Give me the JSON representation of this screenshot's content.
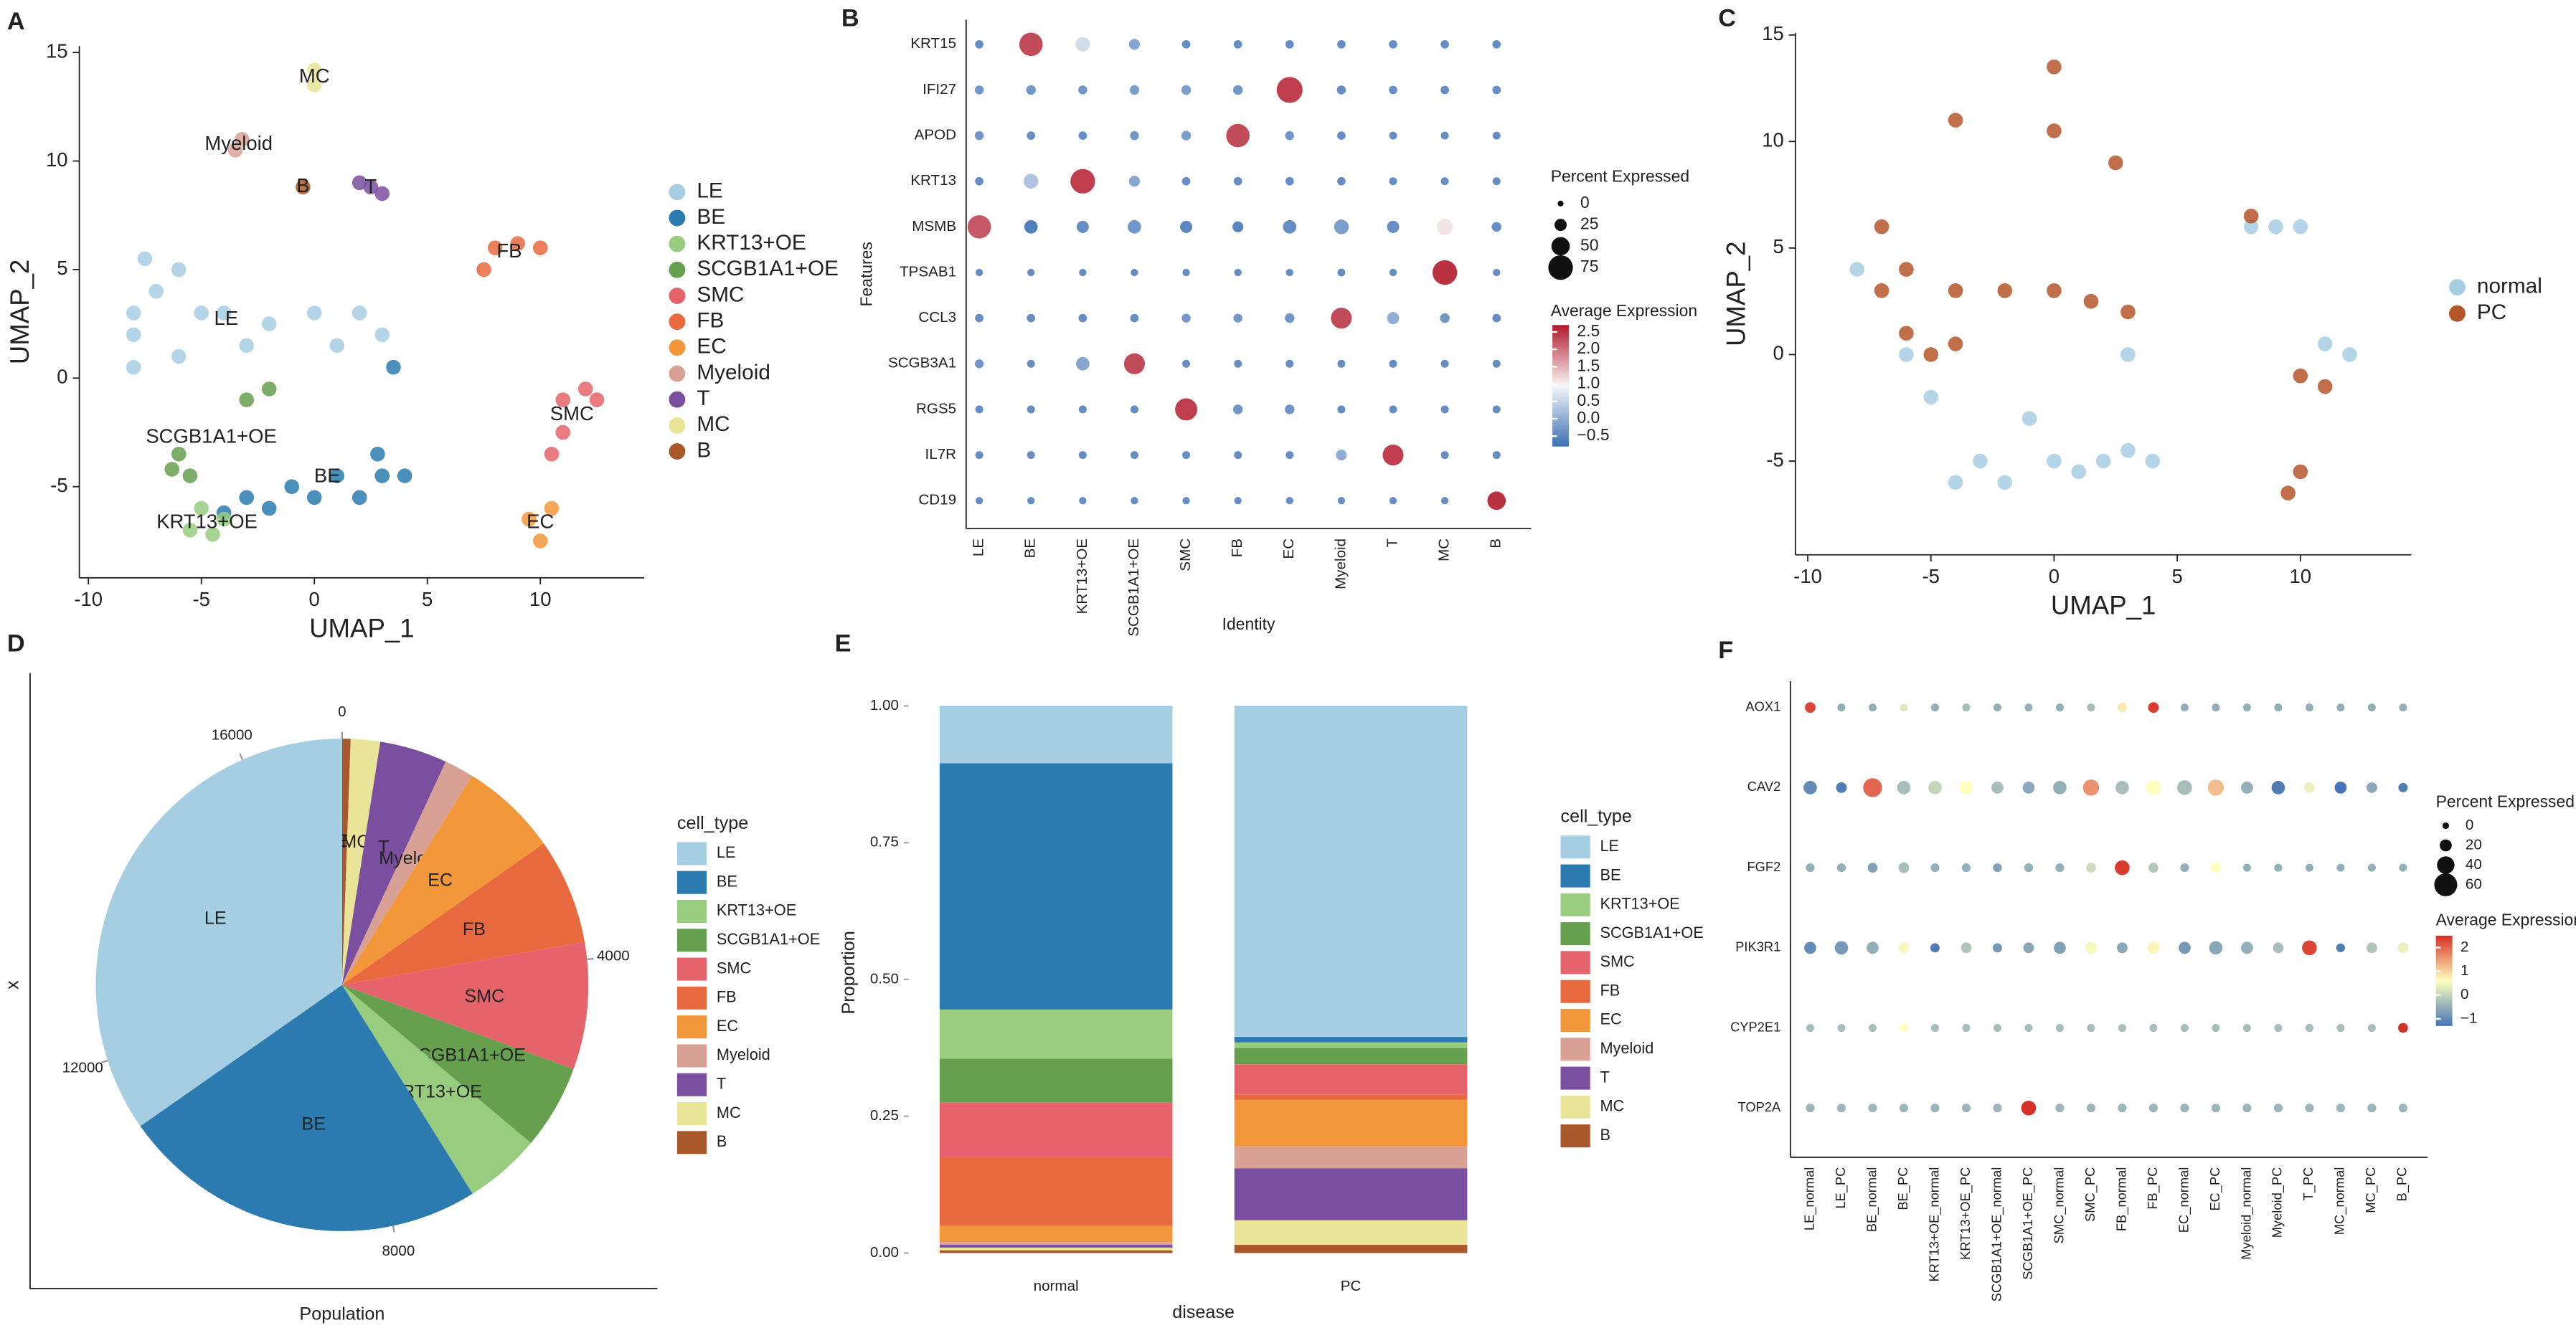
{
  "chart_data": [
    {
      "type": "scatter",
      "panel": "A",
      "xlabel": "UMAP_1",
      "ylabel": "UMAP_2",
      "point_labels": true,
      "xlim": [
        -10.4,
        14.6
      ],
      "ylim": [
        -9.2,
        15.3
      ],
      "xticks": [
        -10,
        -5,
        0,
        5,
        10
      ],
      "yticks": [
        -5,
        0,
        5,
        10,
        15
      ],
      "series": [
        {
          "name": "LE",
          "color": "#a6cee3",
          "x": [
            -7,
            -8,
            -6,
            -5,
            -4,
            -2,
            0,
            2,
            3,
            -6,
            -8,
            -3,
            -8,
            -7.5,
            1
          ],
          "y": [
            4,
            2,
            1,
            3,
            3,
            2.5,
            3,
            3,
            2,
            5,
            0.5,
            1.5,
            3,
            5.5,
            1.5
          ]
        },
        {
          "name": "BE",
          "color": "#2b7bb0",
          "x": [
            -3,
            -1,
            1,
            3,
            4,
            0,
            -2,
            2,
            3.5,
            -4,
            2.8
          ],
          "y": [
            -5.5,
            -5,
            -4.5,
            -4.5,
            -4.5,
            -5.5,
            -6,
            -5.5,
            0.5,
            -6.2,
            -3.5
          ]
        },
        {
          "name": "KRT13+OE",
          "color": "#98cd7f",
          "x": [
            -5,
            -4,
            -5.5,
            -4.5
          ],
          "y": [
            -6,
            -6.5,
            -7,
            -7.2
          ]
        },
        {
          "name": "SCGB1A1+OE",
          "color": "#66a04f",
          "x": [
            -6,
            -5.5,
            -6.3,
            -3,
            -2
          ],
          "y": [
            -3.5,
            -4.5,
            -4.2,
            -1,
            -0.5
          ]
        },
        {
          "name": "SMC",
          "color": "#e5636a",
          "x": [
            11,
            12,
            11,
            10.5,
            12.5
          ],
          "y": [
            -1,
            -0.5,
            -2.5,
            -3.5,
            -1
          ]
        },
        {
          "name": "FB",
          "color": "#e9693f",
          "x": [
            8,
            9,
            10,
            7.5
          ],
          "y": [
            6,
            6.2,
            6,
            5
          ]
        },
        {
          "name": "EC",
          "color": "#f3983a",
          "x": [
            9.5,
            10,
            10.5
          ],
          "y": [
            -6.5,
            -7.5,
            -6
          ]
        },
        {
          "name": "Myeloid",
          "color": "#d9a196",
          "x": [
            -3.5,
            -3.2
          ],
          "y": [
            10.5,
            11
          ]
        },
        {
          "name": "T",
          "color": "#7b4fa0",
          "x": [
            2,
            2.5,
            3
          ],
          "y": [
            9,
            8.8,
            8.5
          ]
        },
        {
          "name": "MC",
          "color": "#e9e498",
          "x": [
            0,
            0
          ],
          "y": [
            13.5,
            14.2
          ]
        },
        {
          "name": "B",
          "color": "#a9582b",
          "x": [
            -0.5
          ],
          "y": [
            8.8
          ]
        }
      ]
    },
    {
      "type": "dotplot",
      "panel": "B",
      "xlabel": "Identity",
      "ylabel": "Features",
      "features": [
        "KRT15",
        "IFI27",
        "APOD",
        "KRT13",
        "MSMB",
        "TPSAB1",
        "CCL3",
        "SCGB3A1",
        "RGS5",
        "IL7R",
        "CD19"
      ],
      "identities": [
        "LE",
        "BE",
        "KRT13+OE",
        "SCGB1A1+OE",
        "SMC",
        "FB",
        "EC",
        "Myeloid",
        "T",
        "MC",
        "B"
      ],
      "pct": [
        [
          10,
          70,
          35,
          20,
          10,
          10,
          10,
          10,
          10,
          10,
          10
        ],
        [
          12,
          15,
          12,
          15,
          15,
          15,
          80,
          12,
          10,
          10,
          10
        ],
        [
          12,
          10,
          10,
          12,
          15,
          70,
          12,
          10,
          8,
          8,
          8
        ],
        [
          10,
          35,
          75,
          20,
          10,
          10,
          10,
          10,
          8,
          8,
          8
        ],
        [
          70,
          30,
          25,
          30,
          25,
          20,
          30,
          35,
          25,
          40,
          15
        ],
        [
          6,
          6,
          6,
          6,
          6,
          6,
          6,
          8,
          6,
          75,
          6
        ],
        [
          10,
          10,
          10,
          10,
          12,
          12,
          15,
          60,
          25,
          15,
          10
        ],
        [
          12,
          8,
          30,
          60,
          8,
          8,
          8,
          8,
          8,
          8,
          8
        ],
        [
          8,
          8,
          8,
          8,
          65,
          15,
          15,
          8,
          8,
          8,
          8
        ],
        [
          8,
          8,
          8,
          8,
          8,
          8,
          8,
          20,
          60,
          8,
          8
        ],
        [
          6,
          6,
          6,
          6,
          6,
          6,
          6,
          6,
          6,
          6,
          50
        ]
      ],
      "avg": [
        [
          -0.4,
          2.3,
          0.6,
          -0.1,
          -0.4,
          -0.4,
          -0.4,
          -0.4,
          -0.4,
          -0.4,
          -0.4
        ],
        [
          -0.3,
          -0.3,
          -0.3,
          -0.2,
          -0.2,
          -0.3,
          2.4,
          -0.4,
          -0.4,
          -0.4,
          -0.4
        ],
        [
          -0.3,
          -0.4,
          -0.4,
          -0.3,
          -0.2,
          2.3,
          -0.3,
          -0.4,
          -0.4,
          -0.4,
          -0.4
        ],
        [
          -0.4,
          0.3,
          2.4,
          -0.1,
          -0.4,
          -0.4,
          -0.4,
          -0.4,
          -0.4,
          -0.4,
          -0.4
        ],
        [
          2.2,
          -0.6,
          -0.4,
          -0.3,
          -0.5,
          -0.5,
          -0.4,
          -0.2,
          -0.4,
          1.1,
          -0.4
        ],
        [
          -0.4,
          -0.4,
          -0.4,
          -0.4,
          -0.4,
          -0.4,
          -0.4,
          -0.4,
          -0.4,
          2.5,
          -0.4
        ],
        [
          -0.4,
          -0.4,
          -0.4,
          -0.4,
          -0.3,
          -0.3,
          -0.3,
          2.3,
          0.0,
          -0.3,
          -0.4
        ],
        [
          -0.3,
          -0.4,
          -0.1,
          2.3,
          -0.4,
          -0.4,
          -0.4,
          -0.4,
          -0.4,
          -0.4,
          -0.4
        ],
        [
          -0.4,
          -0.4,
          -0.4,
          -0.4,
          2.4,
          -0.3,
          -0.3,
          -0.4,
          -0.4,
          -0.4,
          -0.4
        ],
        [
          -0.4,
          -0.4,
          -0.4,
          -0.4,
          -0.4,
          -0.4,
          -0.4,
          0.0,
          2.4,
          -0.4,
          -0.4
        ],
        [
          -0.4,
          -0.4,
          -0.4,
          -0.4,
          -0.4,
          -0.4,
          -0.4,
          -0.4,
          -0.4,
          -0.4,
          2.5
        ]
      ],
      "size_title": "Percent Expressed",
      "size_lim": [
        0,
        75
      ],
      "size_ticks": [
        0,
        25,
        50,
        75
      ],
      "color_title": "Average Expression",
      "color_lim": [
        -0.8,
        2.7
      ],
      "colors": [
        "#3b6fb6",
        "#f7f7f7",
        "#b2182b"
      ],
      "color_ticks": [
        {
          "value": 2.5,
          "label": "2.5"
        },
        {
          "value": 2.0,
          "label": "2.0"
        },
        {
          "value": 1.5,
          "label": "1.5"
        },
        {
          "value": 1.0,
          "label": "1.0"
        },
        {
          "value": 0.5,
          "label": "0.5"
        },
        {
          "value": 0.0,
          "label": "0.0"
        },
        {
          "value": -0.5,
          "label": "−0.5"
        }
      ]
    },
    {
      "type": "scatter",
      "panel": "C",
      "xlabel": "UMAP_1",
      "ylabel": "UMAP_2",
      "point_labels": false,
      "xlim": [
        -10.5,
        14.5
      ],
      "ylim": [
        -9.4,
        15.1
      ],
      "xticks": [
        -10,
        -5,
        0,
        5,
        10
      ],
      "yticks": [
        -5,
        0,
        5,
        10,
        15
      ],
      "series": [
        {
          "name": "normal",
          "color": "#a6cee3",
          "x": [
            8,
            9,
            10,
            -5,
            -3,
            0,
            2,
            3,
            4,
            -4,
            -2,
            1,
            -6,
            -8,
            12,
            11,
            3,
            -1
          ],
          "y": [
            6,
            6,
            6,
            -2,
            -5,
            -5,
            -5,
            -4.5,
            -5,
            -6,
            -6,
            -5.5,
            0,
            4,
            0,
            0.5,
            0,
            -3
          ]
        },
        {
          "name": "PC",
          "color": "#b5562a",
          "x": [
            0,
            -4,
            0,
            2.5,
            -6,
            -7,
            -6,
            -4,
            -2,
            0,
            1.5,
            3,
            -5,
            10,
            11,
            10,
            9.5,
            -7,
            -4,
            8
          ],
          "y": [
            13.5,
            11,
            10.5,
            9,
            4,
            3,
            1,
            3,
            3,
            3,
            2.5,
            2,
            0,
            -1,
            -1.5,
            -5.5,
            -6.5,
            6,
            0.5,
            6.5
          ]
        }
      ]
    },
    {
      "type": "pie",
      "panel": "D",
      "xlabel": "Population",
      "ylabel": "x",
      "legend_title": "cell_type",
      "categories": [
        "LE",
        "BE",
        "KRT13+OE",
        "SCGB1A1+OE",
        "SMC",
        "FB",
        "EC",
        "Myeloid",
        "T",
        "MC",
        "B"
      ],
      "values": [
        5950,
        4140,
        860,
        950,
        1430,
        1190,
        1100,
        330,
        760,
        330,
        95
      ],
      "colors": [
        "#a6cee3",
        "#2b7bb0",
        "#98cd7f",
        "#66a04f",
        "#e5636a",
        "#e9693f",
        "#f3983a",
        "#d9a196",
        "#7b4fa0",
        "#e9e498",
        "#a9582b"
      ],
      "ylim": [
        0,
        17135
      ],
      "yticks": [
        0,
        4000,
        8000,
        12000,
        16000
      ]
    },
    {
      "type": "stacked_bar",
      "panel": "E",
      "xlabel": "disease",
      "ylabel": "Proportion",
      "legend_title": "cell_type",
      "categories": [
        "normal",
        "PC"
      ],
      "series": [
        {
          "name": "LE",
          "color": "#a6cee3",
          "values": [
            0.105,
            0.605
          ]
        },
        {
          "name": "BE",
          "color": "#2b7bb0",
          "values": [
            0.45,
            0.01
          ]
        },
        {
          "name": "KRT13+OE",
          "color": "#98cd7f",
          "values": [
            0.09,
            0.01
          ]
        },
        {
          "name": "SCGB1A1+OE",
          "color": "#66a04f",
          "values": [
            0.08,
            0.03
          ]
        },
        {
          "name": "SMC",
          "color": "#e5636a",
          "values": [
            0.1,
            0.055
          ]
        },
        {
          "name": "FB",
          "color": "#e9693f",
          "values": [
            0.125,
            0.01
          ]
        },
        {
          "name": "EC",
          "color": "#f3983a",
          "values": [
            0.03,
            0.085
          ]
        },
        {
          "name": "Myeloid",
          "color": "#d9a196",
          "values": [
            0.005,
            0.04
          ]
        },
        {
          "name": "T",
          "color": "#7b4fa0",
          "values": [
            0.005,
            0.095
          ]
        },
        {
          "name": "MC",
          "color": "#e9e498",
          "values": [
            0.005,
            0.045
          ]
        },
        {
          "name": "B",
          "color": "#a9582b",
          "values": [
            0.005,
            0.015
          ]
        }
      ],
      "ylim": [
        -0.02,
        1.045
      ],
      "yticks": [
        {
          "value": 0,
          "label": "0.00"
        },
        {
          "value": 0.25,
          "label": "0.25"
        },
        {
          "value": 0.5,
          "label": "0.50"
        },
        {
          "value": 0.75,
          "label": "0.75"
        },
        {
          "value": 1,
          "label": "1.00"
        }
      ]
    },
    {
      "type": "dotplot",
      "panel": "F",
      "features": [
        "AOX1",
        "CAV2",
        "FGF2",
        "PIK3R1",
        "CYP2E1",
        "TOP2A"
      ],
      "identities": [
        "LE_normal",
        "LE_PC",
        "BE_normal",
        "BE_PC",
        "KRT13+OE_normal",
        "KRT13+OE_PC",
        "SCGB1A1+OE_normal",
        "SCGB1A1+OE_PC",
        "SMC_normal",
        "SMC_PC",
        "FB_normal",
        "FB_PC",
        "EC_normal",
        "EC_PC",
        "Myeloid_normal",
        "Myeloid_PC",
        "T_PC",
        "MC_normal",
        "MC_PC",
        "B_PC"
      ],
      "pct": [
        [
          15,
          5,
          5,
          5,
          5,
          5,
          5,
          5,
          5,
          5,
          10,
          15,
          5,
          5,
          5,
          5,
          5,
          5,
          5,
          5
        ],
        [
          25,
          15,
          45,
          25,
          25,
          25,
          20,
          20,
          25,
          35,
          25,
          30,
          30,
          35,
          20,
          25,
          15,
          20,
          15,
          10
        ],
        [
          8,
          8,
          12,
          15,
          8,
          8,
          8,
          8,
          8,
          12,
          30,
          12,
          8,
          15,
          5,
          5,
          5,
          5,
          5,
          5
        ],
        [
          20,
          25,
          20,
          15,
          10,
          15,
          10,
          15,
          20,
          20,
          15,
          20,
          20,
          25,
          20,
          15,
          30,
          8,
          15,
          15
        ],
        [
          5,
          5,
          5,
          8,
          5,
          5,
          5,
          5,
          5,
          5,
          5,
          5,
          5,
          5,
          5,
          5,
          5,
          5,
          5,
          12
        ],
        [
          8,
          8,
          8,
          8,
          8,
          8,
          8,
          30,
          8,
          8,
          8,
          8,
          8,
          8,
          8,
          8,
          8,
          8,
          8,
          8
        ]
      ],
      "avg": [
        [
          2.3,
          -0.5,
          -0.5,
          0.3,
          -0.5,
          -0.3,
          -0.5,
          -0.5,
          -0.5,
          -0.3,
          0.8,
          2.4,
          -0.5,
          -0.5,
          -0.5,
          -0.5,
          -0.5,
          -0.5,
          -0.5,
          -0.5
        ],
        [
          -1,
          -1.2,
          2,
          -0.3,
          0,
          0.6,
          -0.3,
          -0.6,
          -0.5,
          1.6,
          -0.3,
          0.6,
          -0.3,
          1.2,
          -0.5,
          -1.2,
          0.4,
          -1.3,
          -0.6,
          -1.2
        ],
        [
          -0.5,
          -0.5,
          -0.7,
          -0.3,
          -0.5,
          -0.5,
          -0.7,
          -0.5,
          -0.5,
          0.1,
          2.4,
          -0.2,
          -0.5,
          0.6,
          -0.5,
          -0.5,
          -0.5,
          -0.5,
          -0.5,
          -0.5
        ],
        [
          -1,
          -0.8,
          -0.5,
          0.5,
          -1.2,
          -0.2,
          -0.8,
          -0.6,
          -0.7,
          0.5,
          -0.6,
          0.7,
          -0.8,
          -0.6,
          -0.5,
          -0.3,
          2.3,
          -1.2,
          -0.2,
          0.4
        ],
        [
          -0.3,
          -0.3,
          -0.3,
          0.6,
          -0.3,
          -0.3,
          -0.3,
          -0.3,
          -0.3,
          -0.3,
          -0.3,
          -0.3,
          -0.3,
          -0.3,
          -0.3,
          -0.3,
          -0.3,
          -0.3,
          -0.3,
          2.5
        ],
        [
          -0.4,
          -0.4,
          -0.4,
          -0.4,
          -0.4,
          -0.4,
          -0.4,
          2.5,
          -0.4,
          -0.4,
          -0.4,
          -0.4,
          -0.4,
          -0.4,
          -0.4,
          -0.4,
          -0.4,
          -0.4,
          -0.4,
          -0.4
        ]
      ],
      "size_title": "Percent Expressed",
      "size_lim": [
        0,
        60
      ],
      "size_ticks": [
        0,
        20,
        40,
        60
      ],
      "color_title": "Average Expression",
      "color_lim": [
        -1.3,
        2.5
      ],
      "colors": [
        "#4575b4",
        "#ffffbf",
        "#d73027"
      ],
      "color_ticks": [
        {
          "value": 2,
          "label": "2"
        },
        {
          "value": 1,
          "label": "1"
        },
        {
          "value": 0,
          "label": "0"
        },
        {
          "value": -1,
          "label": "−1"
        }
      ]
    }
  ]
}
